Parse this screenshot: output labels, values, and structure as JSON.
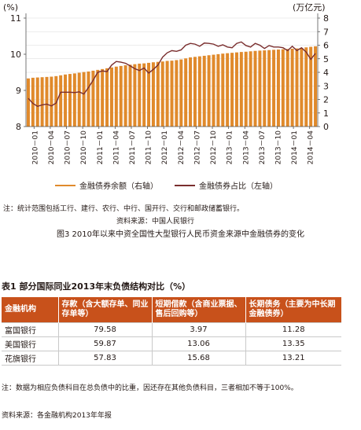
{
  "chart_data": {
    "type": "bar+line",
    "y_left_label": "(%)",
    "y_right_label": "(万亿元)",
    "y_left_range": [
      8,
      11
    ],
    "y_left_ticks": [
      "8",
      "9",
      "10",
      "11"
    ],
    "y_right_range": [
      0,
      8
    ],
    "y_right_ticks": [
      "0",
      "1",
      "2",
      "3",
      "4",
      "5",
      "6",
      "7",
      "8"
    ],
    "x_tick_labels": [
      "2010－01",
      "2010－04",
      "2010－07",
      "2010－10",
      "2011－01",
      "2011－04",
      "2011－07",
      "2011－10",
      "2012－01",
      "2012－04",
      "2012－07",
      "2012－10",
      "2013－01",
      "2013－04",
      "2013－07",
      "2013－10",
      "2014－01",
      "2014－04"
    ],
    "bar_series": {
      "name": "金融债券余额（右轴）",
      "axis": "right",
      "color": "#e08a2c",
      "values": [
        3.55,
        3.6,
        3.62,
        3.64,
        3.66,
        3.68,
        3.72,
        3.78,
        3.84,
        3.88,
        3.92,
        3.97,
        4.02,
        4.06,
        4.12,
        4.18,
        4.24,
        4.3,
        4.36,
        4.42,
        4.47,
        4.52,
        4.56,
        4.6,
        4.64,
        4.66,
        4.7,
        4.74,
        4.77,
        4.8,
        4.84,
        4.86,
        4.9,
        4.95,
        5.03,
        5.1,
        5.14,
        5.18,
        5.22,
        5.26,
        5.3,
        5.34,
        5.38,
        5.41,
        5.44,
        5.47,
        5.5,
        5.52,
        5.55,
        5.58,
        5.6,
        5.62,
        5.64,
        5.66,
        5.68,
        5.7,
        5.72,
        5.74,
        5.76,
        5.8,
        5.84,
        5.88,
        5.92
      ]
    },
    "line_series": {
      "name": "金融债券占比（左轴）",
      "axis": "left",
      "color": "#7a2e2e",
      "values": [
        8.78,
        8.64,
        8.56,
        8.6,
        8.62,
        8.57,
        8.65,
        8.95,
        8.95,
        8.95,
        8.94,
        8.96,
        8.9,
        9.08,
        9.28,
        9.5,
        9.54,
        9.52,
        9.7,
        9.8,
        9.78,
        9.75,
        9.68,
        9.6,
        9.55,
        9.62,
        9.48,
        9.58,
        9.7,
        9.92,
        10.04,
        10.1,
        10.08,
        10.12,
        10.25,
        10.3,
        10.28,
        10.22,
        10.31,
        10.3,
        10.28,
        10.22,
        10.26,
        10.2,
        10.18,
        10.3,
        10.34,
        10.24,
        10.2,
        10.3,
        10.25,
        10.16,
        10.24,
        10.2,
        10.2,
        10.18,
        10.1,
        10.22,
        10.1,
        10.18,
        10.06,
        9.86,
        10.02
      ]
    }
  },
  "notes": {
    "chart_note": "注：统计范围包括工行、建行、农行、中行、国开行、交行和邮政储蓄银行。",
    "chart_source": "资料来源：中国人民银行",
    "figure_caption": "图3  2010年以来中资全国性大型银行人民币资金来源中金融债券的变化"
  },
  "table": {
    "title": "表1    部分国际同业2013年末负债结构对比（%）",
    "headers": [
      "金融机构",
      "存款（含大额存单、同业存单等）",
      "短期借款（含商业票据、售后回购等）",
      "长期债务（主要为中长期金融债券）"
    ],
    "rows": [
      [
        "富国银行",
        "79.58",
        "3.97",
        "11.28"
      ],
      [
        "美国银行",
        "59.87",
        "13.06",
        "13.35"
      ],
      [
        "花旗银行",
        "57.83",
        "15.68",
        "13.21"
      ]
    ],
    "note": "注：数据为相应负债科目在总负债中的比重，因还存在其他负债科目，三者相加不等于100%。",
    "source": "资料来源：各金融机构2013年年报"
  }
}
